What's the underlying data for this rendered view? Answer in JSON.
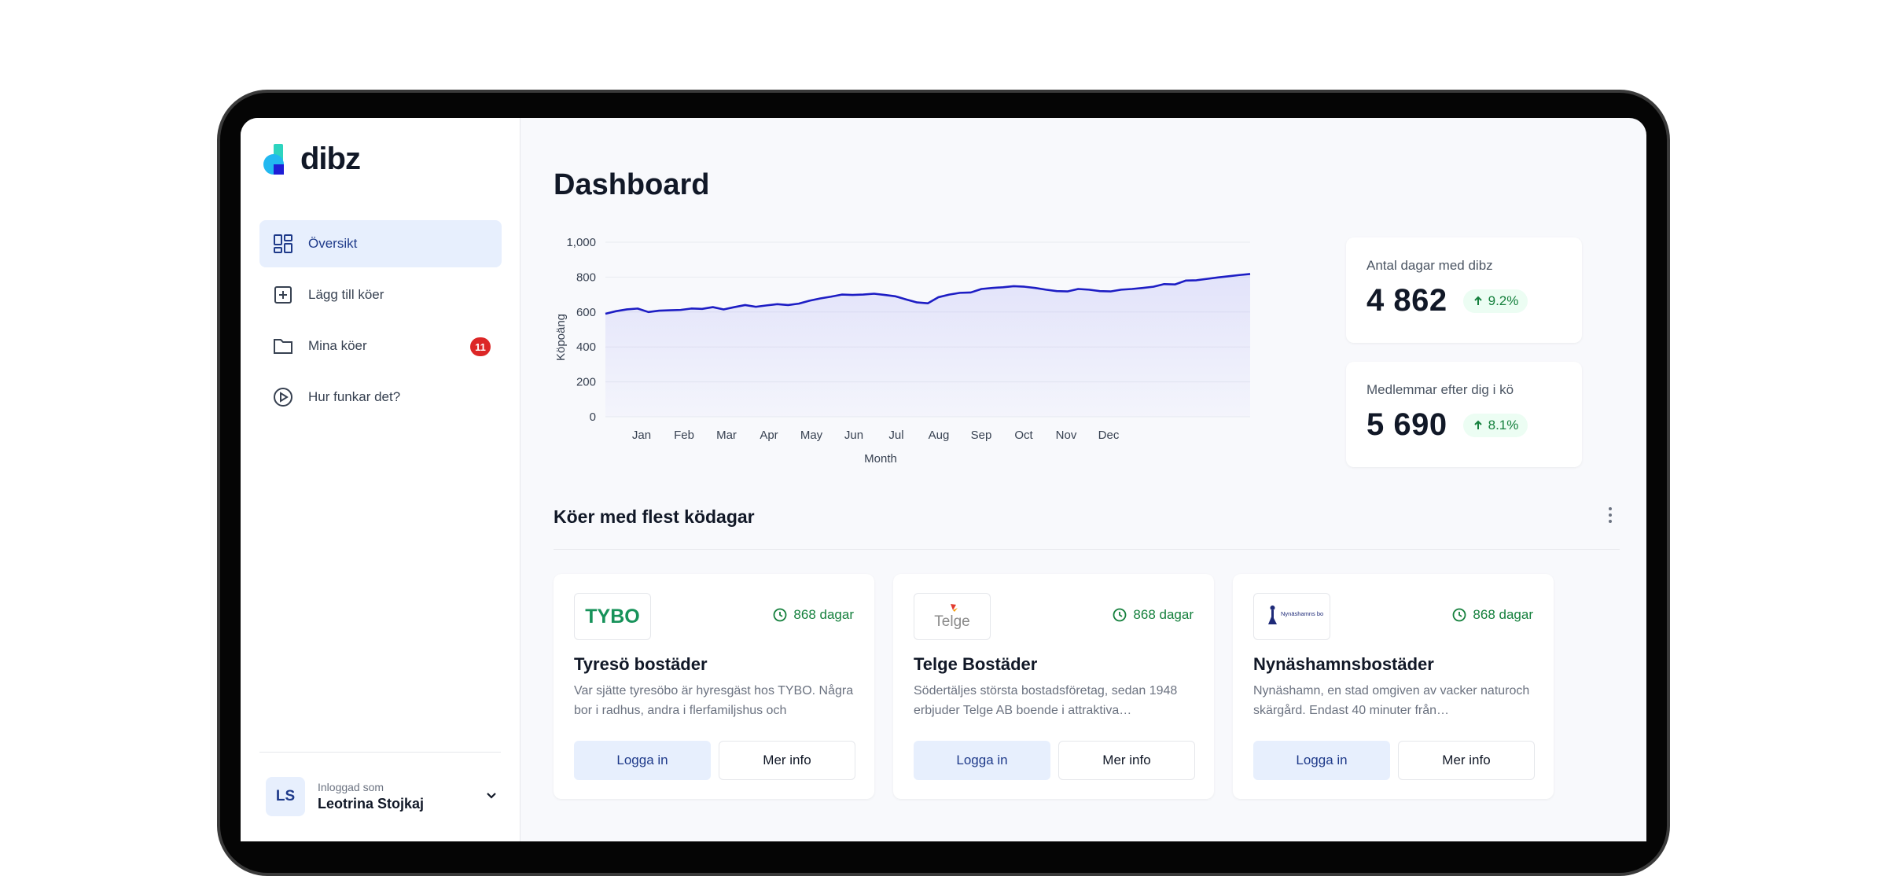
{
  "app": {
    "brand": "dibz"
  },
  "sidebar": {
    "items": [
      {
        "label": "Översikt",
        "icon": "dashboard-grid-icon",
        "active": true
      },
      {
        "label": "Lägg till köer",
        "icon": "plus-square-icon"
      },
      {
        "label": "Mina köer",
        "icon": "folder-icon",
        "badge": "11"
      },
      {
        "label": "Hur funkar det?",
        "icon": "play-circle-icon"
      }
    ],
    "user": {
      "initials": "LS",
      "caption": "Inloggad som",
      "name": "Leotrina Stojkaj"
    }
  },
  "main": {
    "title": "Dashboard",
    "stats": [
      {
        "label": "Antal dagar med dibz",
        "value": "4 862",
        "delta": "9.2%"
      },
      {
        "label": "Medlemmar efter dig i kö",
        "value": "5 690",
        "delta": "8.1%"
      }
    ],
    "section_title": "Köer med flest ködagar",
    "cards": [
      {
        "logo_text": "TYBO",
        "days": "868 dagar",
        "title": "Tyresö bostäder",
        "desc": "Var sjätte tyresöbo är hyresgäst hos TYBO. Några bor i radhus, andra i flerfamiljshus och",
        "primary": "Logga in",
        "secondary": "Mer info"
      },
      {
        "logo_text": "Telge",
        "days": "868 dagar",
        "title": "Telge Bostäder",
        "desc": "Södertäljes största bostadsföretag, sedan 1948 erbjuder Telge AB boende i attraktiva…",
        "primary": "Logga in",
        "secondary": "Mer info"
      },
      {
        "logo_text": "Nynäshamns bostäder",
        "days": "868 dagar",
        "title": "Nynäshamnsbostäder",
        "desc": "Nynäshamn, en stad omgiven av vacker naturoch skärgård. Endast 40 minuter från…",
        "primary": "Logga in",
        "secondary": "Mer info"
      }
    ]
  },
  "chart_data": {
    "type": "area",
    "xlabel": "Month",
    "ylabel": "Köpoäng",
    "ylim": [
      0,
      1000
    ],
    "yticks": [
      "0",
      "200",
      "400",
      "600",
      "800",
      "1,000"
    ],
    "categories": [
      "Jan",
      "Feb",
      "Mar",
      "Apr",
      "May",
      "Jun",
      "Jul",
      "Aug",
      "Sep",
      "Oct",
      "Nov",
      "Dec"
    ],
    "grid": true,
    "color": "#1d1dc4",
    "x": [
      0,
      0.5,
      1,
      1.5,
      2,
      2.5,
      3,
      3.5,
      4,
      4.5,
      5,
      5.5,
      6,
      6.5,
      7,
      7.5,
      8,
      8.5,
      9,
      9.5,
      10,
      10.5,
      11,
      11.5,
      12,
      12.5,
      13,
      13.5,
      14,
      14.5,
      15,
      15.5,
      16,
      16.5,
      17,
      17.5,
      18,
      18.5,
      19,
      19.5,
      20,
      20.5,
      21,
      21.5,
      22,
      22.5,
      23,
      23.5,
      24,
      24.5,
      25,
      25.5,
      26,
      26.5,
      27,
      27.5,
      28,
      28.5,
      29,
      29.5,
      30
    ],
    "values": [
      590,
      605,
      615,
      620,
      600,
      608,
      610,
      612,
      620,
      618,
      628,
      615,
      628,
      640,
      630,
      638,
      645,
      640,
      648,
      665,
      678,
      688,
      700,
      698,
      700,
      705,
      698,
      690,
      672,
      655,
      650,
      685,
      700,
      710,
      712,
      732,
      738,
      742,
      748,
      745,
      738,
      728,
      720,
      718,
      732,
      728,
      720,
      718,
      728,
      732,
      738,
      745,
      760,
      758,
      780,
      782,
      790,
      798,
      805,
      812,
      818
    ]
  }
}
